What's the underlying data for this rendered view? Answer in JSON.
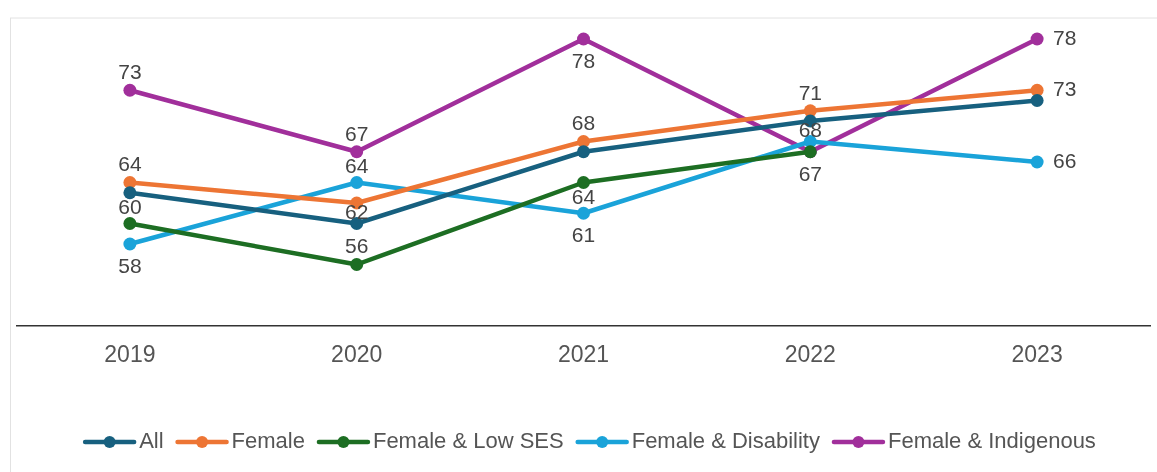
{
  "chart_data": {
    "type": "line",
    "categories": [
      "2019",
      "2020",
      "2021",
      "2022",
      "2023"
    ],
    "ylim": [
      50,
      80
    ],
    "tick_labels": "x",
    "grid": false,
    "legend": "bottom",
    "marker": "circle",
    "line_style": "solid",
    "series": [
      {
        "name": "All",
        "color": "#17607f",
        "values": [
          63,
          60,
          67,
          70,
          72
        ]
      },
      {
        "name": "Female",
        "color": "#ed7534",
        "values": [
          64,
          62,
          68,
          71,
          73
        ],
        "value_labels": [
          "64",
          "62",
          "68",
          "71",
          "73"
        ]
      },
      {
        "name": "Female & Low SES",
        "color": "#1d6e23",
        "values": [
          60,
          56,
          64,
          67,
          null
        ],
        "value_labels": [
          "60",
          "56",
          "64",
          null,
          null
        ]
      },
      {
        "name": "Female & Disability",
        "color": "#1aa3d9",
        "values": [
          58,
          64,
          61,
          68,
          66
        ],
        "value_labels": [
          "58",
          "64",
          "61",
          "68",
          "66"
        ]
      },
      {
        "name": "Female & Indigenous",
        "color": "#a12f9b",
        "values": [
          73,
          67,
          78,
          67,
          78
        ],
        "value_labels": [
          "73",
          "67",
          "78",
          "67",
          "78"
        ]
      }
    ]
  }
}
